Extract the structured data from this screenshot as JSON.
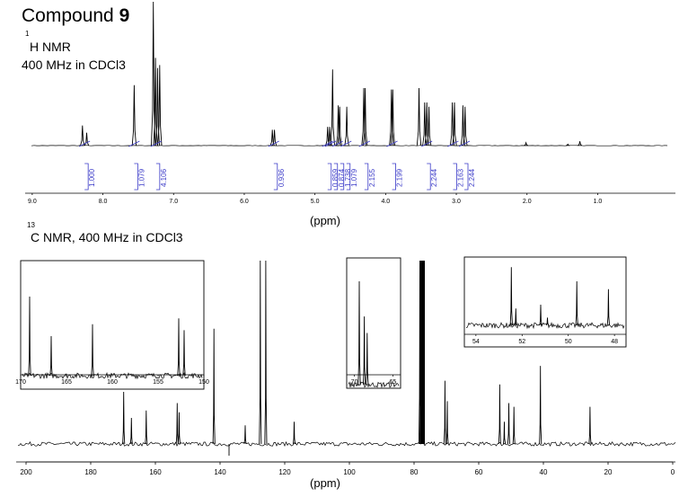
{
  "header": {
    "title_prefix": "Compound ",
    "title_number": "9",
    "h_superscript": "1",
    "h_label": "H NMR",
    "h_frequency": "400 MHz in CDCl3",
    "c_superscript": "13",
    "c_label": "C NMR, 400 MHz in CDCl3"
  },
  "chart_data": [
    {
      "type": "line",
      "title": "",
      "xlabel": "(ppm)",
      "ylabel": "",
      "xlim": [
        9.0,
        0.0
      ],
      "reversed_x": true,
      "ticks": [
        "9.0",
        "8.0",
        "7.0",
        "6.0",
        "5.0",
        "4.0",
        "3.0",
        "2.0",
        "1.0"
      ],
      "peaks": [
        {
          "ppm": 8.28,
          "height": 0.14
        },
        {
          "ppm": 8.22,
          "height": 0.09
        },
        {
          "ppm": 7.55,
          "height": 0.42
        },
        {
          "ppm": 7.28,
          "height": 1.0
        },
        {
          "ppm": 7.25,
          "height": 0.61
        },
        {
          "ppm": 7.22,
          "height": 0.54
        },
        {
          "ppm": 7.19,
          "height": 0.56
        },
        {
          "ppm": 5.6,
          "height": 0.11
        },
        {
          "ppm": 5.57,
          "height": 0.11
        },
        {
          "ppm": 4.82,
          "height": 0.13
        },
        {
          "ppm": 4.79,
          "height": 0.13
        },
        {
          "ppm": 4.75,
          "height": 0.53
        },
        {
          "ppm": 4.67,
          "height": 0.28
        },
        {
          "ppm": 4.65,
          "height": 0.27
        },
        {
          "ppm": 4.55,
          "height": 0.27
        },
        {
          "ppm": 4.31,
          "height": 0.4
        },
        {
          "ppm": 4.29,
          "height": 0.4
        },
        {
          "ppm": 3.92,
          "height": 0.39
        },
        {
          "ppm": 3.9,
          "height": 0.39
        },
        {
          "ppm": 3.53,
          "height": 0.4
        },
        {
          "ppm": 3.45,
          "height": 0.3
        },
        {
          "ppm": 3.42,
          "height": 0.3
        },
        {
          "ppm": 3.39,
          "height": 0.27
        },
        {
          "ppm": 3.06,
          "height": 0.3
        },
        {
          "ppm": 3.03,
          "height": 0.3
        },
        {
          "ppm": 2.91,
          "height": 0.28
        },
        {
          "ppm": 2.88,
          "height": 0.27
        },
        {
          "ppm": 2.02,
          "height": 0.02
        },
        {
          "ppm": 1.26,
          "height": 0.03
        },
        {
          "ppm": 1.43,
          "height": 0.01
        }
      ],
      "integrals": [
        {
          "ppm": 8.25,
          "value": "1.000"
        },
        {
          "ppm": 7.55,
          "value": "1.079"
        },
        {
          "ppm": 7.24,
          "value": "4.106"
        },
        {
          "ppm": 5.58,
          "value": "0.936"
        },
        {
          "ppm": 4.82,
          "value": "0.859"
        },
        {
          "ppm": 4.78,
          "value": "0.874"
        },
        {
          "ppm": 4.68,
          "value": "1.738"
        },
        {
          "ppm": 4.56,
          "value": "1.079"
        },
        {
          "ppm": 4.3,
          "value": "2.155"
        },
        {
          "ppm": 3.91,
          "value": "2.199"
        },
        {
          "ppm": 3.42,
          "value": "2.244"
        },
        {
          "ppm": 3.05,
          "value": "2.163"
        },
        {
          "ppm": 2.89,
          "value": "2.244"
        }
      ]
    },
    {
      "type": "line",
      "title": "",
      "xlabel": "(ppm)",
      "ylabel": "",
      "xlim": [
        200,
        0
      ],
      "reversed_x": true,
      "ticks": [
        "200",
        "180",
        "160",
        "140",
        "120",
        "100",
        "80",
        "60",
        "40",
        "20",
        "0"
      ],
      "peaks": [
        {
          "ppm": 169.2,
          "height": 0.28
        },
        {
          "ppm": 166.8,
          "height": 0.14
        },
        {
          "ppm": 162.2,
          "height": 0.18
        },
        {
          "ppm": 152.6,
          "height": 0.22
        },
        {
          "ppm": 152.0,
          "height": 0.17
        },
        {
          "ppm": 141.2,
          "height": 0.62
        },
        {
          "ppm": 131.5,
          "height": 0.1
        },
        {
          "ppm": 126.8,
          "height": 1.0
        },
        {
          "ppm": 125.1,
          "height": 1.0
        },
        {
          "ppm": 116.3,
          "height": 0.12
        },
        {
          "ppm": 77.3,
          "height": 1.0
        },
        {
          "ppm": 77.0,
          "height": 1.0
        },
        {
          "ppm": 76.7,
          "height": 1.0
        },
        {
          "ppm": 69.5,
          "height": 0.34
        },
        {
          "ppm": 68.8,
          "height": 0.23
        },
        {
          "ppm": 52.5,
          "height": 0.32
        },
        {
          "ppm": 51.1,
          "height": 0.12
        },
        {
          "ppm": 49.7,
          "height": 0.22
        },
        {
          "ppm": 48.1,
          "height": 0.2
        },
        {
          "ppm": 39.9,
          "height": 0.42
        },
        {
          "ppm": 24.5,
          "height": 0.2
        }
      ],
      "insets": [
        {
          "xlim": [
            170,
            150
          ],
          "ticks": [
            "170",
            "165",
            "160",
            "155",
            "150"
          ],
          "peaks": [
            {
              "ppm": 169.2,
              "height": 0.8
            },
            {
              "ppm": 166.8,
              "height": 0.4
            },
            {
              "ppm": 162.2,
              "height": 0.52
            },
            {
              "ppm": 152.6,
              "height": 0.58
            },
            {
              "ppm": 152.0,
              "height": 0.46
            }
          ]
        },
        {
          "xlim": [
            71,
            64
          ],
          "ticks": [
            "70",
            "65"
          ],
          "peaks": [
            {
              "ppm": 69.5,
              "height": 1.0
            },
            {
              "ppm": 68.8,
              "height": 0.66
            },
            {
              "ppm": 68.4,
              "height": 0.5
            }
          ]
        },
        {
          "xlim": [
            54.5,
            47.5
          ],
          "ticks": [
            "54",
            "52",
            "50",
            "48"
          ],
          "peaks": [
            {
              "ppm": 52.5,
              "height": 0.9
            },
            {
              "ppm": 52.3,
              "height": 0.26
            },
            {
              "ppm": 51.2,
              "height": 0.32
            },
            {
              "ppm": 50.9,
              "height": 0.12
            },
            {
              "ppm": 49.6,
              "height": 0.68
            },
            {
              "ppm": 48.2,
              "height": 0.56
            }
          ]
        }
      ]
    }
  ]
}
